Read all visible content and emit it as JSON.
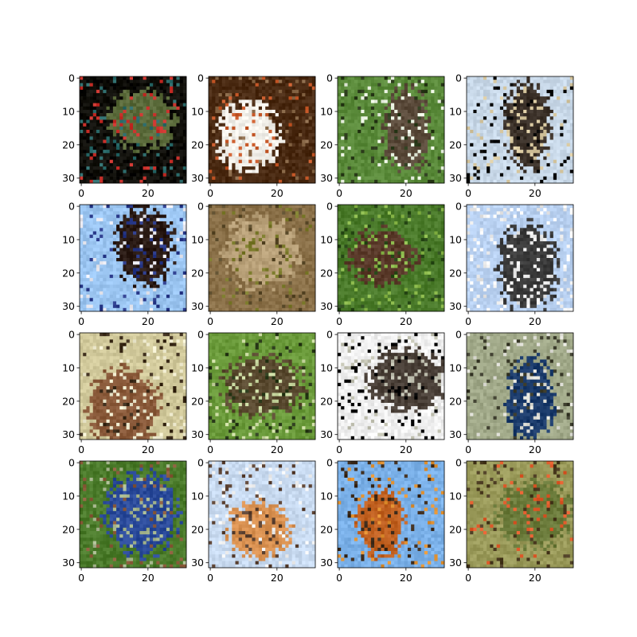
{
  "figure": {
    "grid": {
      "rows": 4,
      "cols": 4
    },
    "image_size": 32,
    "x_ticks": [
      "0",
      "20"
    ],
    "y_ticks": [
      "0",
      "10",
      "20",
      "30"
    ],
    "panels": [
      {
        "subject": "dark bird on black background",
        "bg": "#0e0d08",
        "body": "#5a6a3a",
        "accent": "#c8302a",
        "accent2": "#2a6a6a"
      },
      {
        "subject": "white dove on brown background",
        "bg": "#4a2a12",
        "body": "#f2f0ea",
        "accent": "#c85a2a",
        "accent2": "#8a6a4a"
      },
      {
        "subject": "brown hawk in green foliage",
        "bg": "#5a8a3a",
        "body": "#5a4a3a",
        "accent": "#e8f0e0",
        "accent2": "#2a3a1a"
      },
      {
        "subject": "dark bird in flight on pale sky",
        "bg": "#c8d8e8",
        "body": "#3a3028",
        "accent": "#d8c8a0",
        "accent2": "#000000"
      },
      {
        "subject": "dark bird on blue sky",
        "bg": "#9ac4f0",
        "body": "#2a1a14",
        "accent": "#2a3a8a",
        "accent2": "#e8e8f0"
      },
      {
        "subject": "small brown bird",
        "bg": "#8a7048",
        "body": "#b8a078",
        "accent": "#7a7a2a",
        "accent2": "#5a4a2a"
      },
      {
        "subject": "bird hidden in green leaves",
        "bg": "#4a7a2a",
        "body": "#5a3a2a",
        "accent": "#8ab84a",
        "accent2": "#2a4a1a"
      },
      {
        "subject": "bird in flight on pale blue sky",
        "bg": "#b8d0f0",
        "body": "#3a3a3a",
        "accent": "#e8e8e8",
        "accent2": "#ffffff"
      },
      {
        "subject": "brown bird on branch",
        "bg": "#d0c89a",
        "body": "#8a5a3a",
        "accent": "#f0ecd0",
        "accent2": "#3a2a18"
      },
      {
        "subject": "bird among green branches",
        "bg": "#6a9a3a",
        "body": "#5a4a30",
        "accent": "#c8d8a0",
        "accent2": "#2a3a1a"
      },
      {
        "subject": "dark bird on white background",
        "bg": "#f0f0f0",
        "body": "#4a4038",
        "accent": "#c0c0b0",
        "accent2": "#000000"
      },
      {
        "subject": "blue bird on branch",
        "bg": "#a0a888",
        "body": "#1a3a6a",
        "accent": "#e0e0d8",
        "accent2": "#3a3a2a"
      },
      {
        "subject": "blue birds in green foliage",
        "bg": "#4a7a2a",
        "body": "#2a4a9a",
        "accent": "#a8b890",
        "accent2": "#8a5a3a"
      },
      {
        "subject": "orange bird on pale sky",
        "bg": "#c8daf0",
        "body": "#d89050",
        "accent": "#5a4030",
        "accent2": "#f0f0f0"
      },
      {
        "subject": "orange bird on blue sky",
        "bg": "#7ab0e8",
        "body": "#c06020",
        "accent": "#3a2818",
        "accent2": "#e09030"
      },
      {
        "subject": "bird with red spots in foliage",
        "bg": "#9a9a5a",
        "body": "#6a7a3a",
        "accent": "#e05a2a",
        "accent2": "#4a3a20"
      }
    ]
  }
}
